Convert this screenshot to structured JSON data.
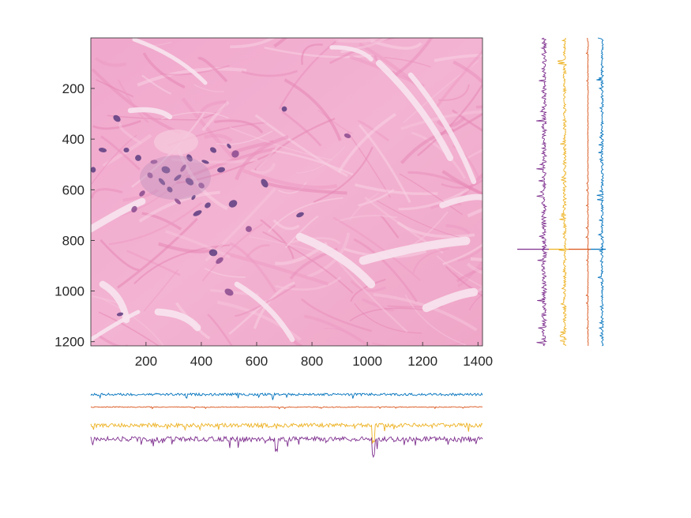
{
  "chart_data": {
    "type": "heatmap",
    "image": {
      "description_free": true,
      "x_ticks": [
        200,
        400,
        600,
        800,
        1000,
        1200,
        1400
      ],
      "y_ticks": [
        200,
        400,
        600,
        800,
        1000,
        1200
      ],
      "xlim": [
        0.5,
        1416.5
      ],
      "ylim": [
        0.5,
        1216.5
      ],
      "grid": false
    },
    "profiles": {
      "series_colors": [
        "#0072bd",
        "#d95319",
        "#edb120",
        "#7e2f8e"
      ],
      "highlight_row": 835
    }
  }
}
